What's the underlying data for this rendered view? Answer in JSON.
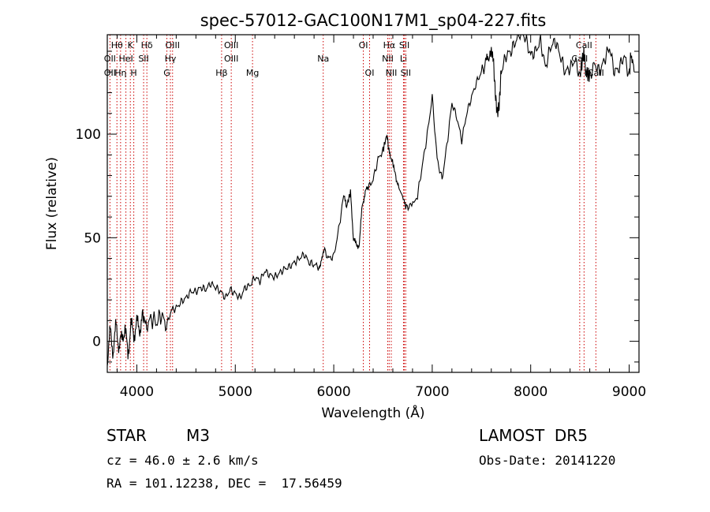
{
  "chart_data": {
    "type": "line",
    "title": "spec-57012-GAC100N17M1_sp04-227.fits",
    "xlabel": "Wavelength (Å)",
    "ylabel": "Flux (relative)",
    "xlim": [
      3700,
      9100
    ],
    "ylim": [
      -15,
      148
    ],
    "x_ticks": [
      4000,
      5000,
      6000,
      7000,
      8000,
      9000
    ],
    "y_ticks": [
      0,
      50,
      100
    ],
    "grid": false,
    "line_color": "#000000",
    "marker_color": "#cc0000",
    "series": [
      {
        "x": [
          3700,
          3730,
          3760,
          3790,
          3820,
          3850,
          3880,
          3910,
          3940,
          3970,
          4000,
          4030,
          4060,
          4100,
          4150,
          4200,
          4250,
          4300,
          4350,
          4400,
          4450,
          4500,
          4550,
          4600,
          4650,
          4700,
          4750,
          4800,
          4850,
          4900,
          4950,
          5000,
          5050,
          5100,
          5150,
          5200,
          5250,
          5300,
          5350,
          5400,
          5450,
          5500,
          5550,
          5600,
          5650,
          5700,
          5750,
          5800,
          5850,
          5880,
          5900,
          5950,
          6000,
          6050,
          6100,
          6130,
          6170,
          6200,
          6230,
          6260,
          6290,
          6320,
          6350,
          6400,
          6450,
          6500,
          6540,
          6560,
          6590,
          6630,
          6660,
          6700,
          6730,
          6780,
          6850,
          6900,
          6950,
          7000,
          7050,
          7100,
          7150,
          7200,
          7250,
          7300,
          7350,
          7400,
          7450,
          7500,
          7550,
          7580,
          7600,
          7620,
          7640,
          7660,
          7680,
          7700,
          7750,
          7800,
          7850,
          7900,
          7950,
          8000,
          8050,
          8100,
          8150,
          8200,
          8250,
          8300,
          8350,
          8400,
          8450,
          8500,
          8540,
          8560,
          8600,
          8650,
          8700,
          8750,
          8800,
          8850,
          8900,
          8950,
          9000,
          9020,
          9050
        ],
        "y": [
          -10,
          5,
          -5,
          8,
          -3,
          2,
          6,
          -6,
          8,
          3,
          9,
          6,
          12,
          8,
          11,
          9,
          13,
          7,
          15,
          16,
          19,
          21,
          24,
          24,
          26,
          25,
          28,
          26,
          24,
          21,
          25,
          23,
          21,
          26,
          27,
          31,
          29,
          34,
          32,
          31,
          33,
          35,
          36,
          38,
          40,
          42,
          38,
          37,
          36,
          40,
          44,
          40,
          41,
          54,
          70,
          65,
          72,
          50,
          46,
          47,
          66,
          72,
          74,
          78,
          88,
          92,
          100,
          92,
          88,
          80,
          74,
          70,
          64,
          66,
          70,
          85,
          100,
          118,
          88,
          78,
          95,
          115,
          108,
          97,
          110,
          118,
          125,
          130,
          135,
          138,
          140,
          137,
          120,
          110,
          114,
          130,
          138,
          140,
          145,
          150,
          146,
          138,
          140,
          145,
          132,
          142,
          145,
          138,
          130,
          132,
          136,
          128,
          140,
          130,
          128,
          134,
          130,
          136,
          142,
          130,
          132,
          138,
          128,
          140,
          130
        ]
      }
    ],
    "line_markers": [
      {
        "label": "Hθ",
        "wl": 3798,
        "row": 0
      },
      {
        "label": "OII",
        "wl": 3727,
        "row": 1
      },
      {
        "label": "OII",
        "wl": 3727,
        "row": 2
      },
      {
        "label": "K",
        "wl": 3934,
        "row": 0
      },
      {
        "label": "HeI",
        "wl": 3889,
        "row": 1
      },
      {
        "label": "Hη",
        "wl": 3835,
        "row": 2
      },
      {
        "label": "Hδ",
        "wl": 4102,
        "row": 0
      },
      {
        "label": "SII",
        "wl": 4069,
        "row": 1
      },
      {
        "label": "H",
        "wl": 3969,
        "row": 2
      },
      {
        "label": "OIII",
        "wl": 4363,
        "row": 0
      },
      {
        "label": "Hγ",
        "wl": 4341,
        "row": 1
      },
      {
        "label": "G",
        "wl": 4305,
        "row": 2
      },
      {
        "label": "OIII",
        "wl": 4959,
        "row": 0
      },
      {
        "label": "OIII",
        "wl": 4959,
        "row": 1
      },
      {
        "label": "Hβ",
        "wl": 4861,
        "row": 2
      },
      {
        "label": "Mg",
        "wl": 5175,
        "row": 2
      },
      {
        "label": "Na",
        "wl": 5893,
        "row": 1
      },
      {
        "label": "OI",
        "wl": 6300,
        "row": 0
      },
      {
        "label": "OI",
        "wl": 6364,
        "row": 2
      },
      {
        "label": "Hα",
        "wl": 6563,
        "row": 0
      },
      {
        "label": "NII",
        "wl": 6548,
        "row": 1
      },
      {
        "label": "NII",
        "wl": 6584,
        "row": 2
      },
      {
        "label": "SII",
        "wl": 6717,
        "row": 0
      },
      {
        "label": "Li",
        "wl": 6708,
        "row": 1
      },
      {
        "label": "SII",
        "wl": 6731,
        "row": 2
      },
      {
        "label": "CaII",
        "wl": 8542,
        "row": 0
      },
      {
        "label": "CaII",
        "wl": 8498,
        "row": 1
      },
      {
        "label": "CaII",
        "wl": 8662,
        "row": 2
      }
    ]
  },
  "info": {
    "object_class": "STAR",
    "subclass": "M3",
    "survey": "LAMOST  DR5",
    "cz": "cz = 46.0 ± 2.6 km/s",
    "obs_date": "Obs-Date: 20141220",
    "coords": "RA = 101.12238, DEC =  17.56459"
  }
}
